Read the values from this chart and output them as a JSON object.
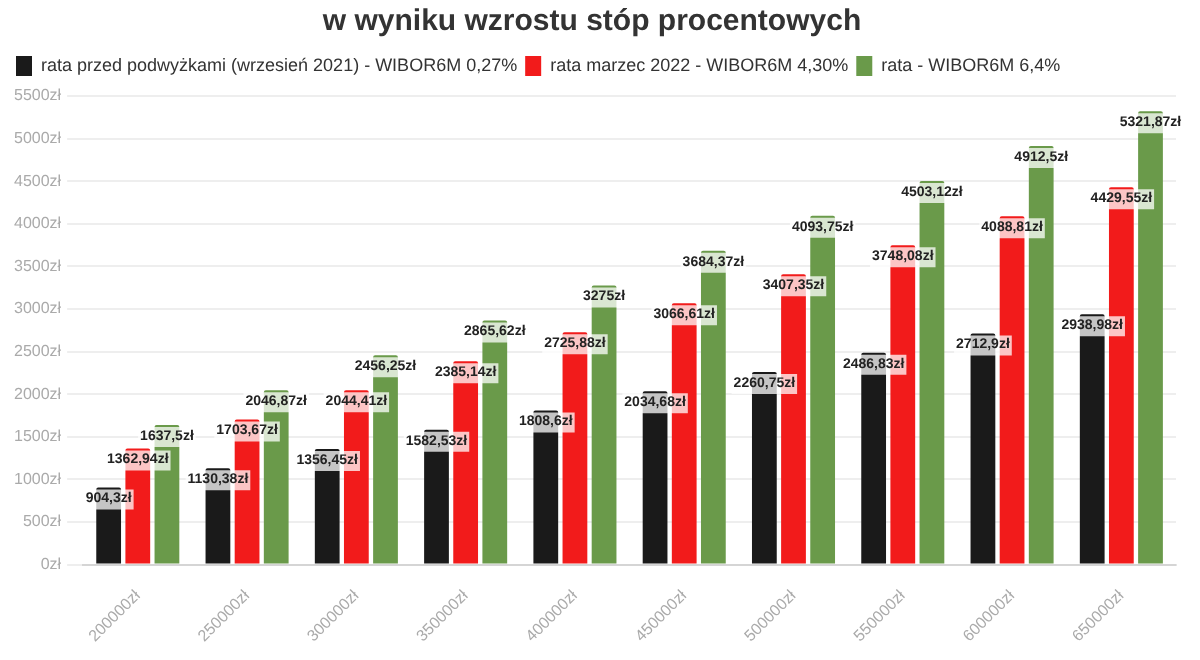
{
  "chart_data": {
    "type": "bar",
    "title": "w wyniku wzrostu stóp procentowych",
    "categories": [
      "200000zł",
      "250000zł",
      "300000zł",
      "350000zł",
      "400000zł",
      "450000zł",
      "500000zł",
      "550000zł",
      "600000zł",
      "650000zł"
    ],
    "series": [
      {
        "name": "rata przed podwyżkami (wrzesień 2021) - WIBOR6M 0,27%",
        "color": "#1a1a1a",
        "values": [
          904.3,
          1130.38,
          1356.45,
          1582.53,
          1808.6,
          2034.68,
          2260.75,
          2486.83,
          2712.9,
          2938.98
        ],
        "value_labels": [
          "904,3zł",
          "1130,38zł",
          "1356,45zł",
          "1582,53zł",
          "1808,6zł",
          "2034,68zł",
          "2260,75zł",
          "2486,83zł",
          "2712,9zł",
          "2938,98zł"
        ]
      },
      {
        "name": "rata marzec 2022 - WIBOR6M 4,30%",
        "color": "#f21b1b",
        "values": [
          1362.94,
          1703.67,
          2044.41,
          2385.14,
          2725.88,
          3066.61,
          3407.35,
          3748.08,
          4088.81,
          4429.55
        ],
        "value_labels": [
          "1362,94zł",
          "1703,67zł",
          "2044,41zł",
          "2385,14zł",
          "2725,88zł",
          "3066,61zł",
          "3407,35zł",
          "3748,08zł",
          "4088,81zł",
          "4429,55zł"
        ]
      },
      {
        "name": "rata - WIBOR6M 6,4%",
        "color": "#6a9a4a",
        "values": [
          1637.5,
          2046.87,
          2456.25,
          2865.62,
          3275,
          3684.37,
          4093.75,
          4503.12,
          4912.5,
          5321.87
        ],
        "value_labels": [
          "1637,5zł",
          "2046,87zł",
          "2456,25zł",
          "2865,62zł",
          "3275zł",
          "3684,37zł",
          "4093,75zł",
          "4503,12zł",
          "4912,5zł",
          "5321,87zł"
        ]
      }
    ],
    "ylim": [
      0,
      5500
    ],
    "yticks": [
      {
        "value": 0,
        "label": "0zł"
      },
      {
        "value": 500,
        "label": "500zł"
      },
      {
        "value": 1000,
        "label": "1000zł"
      },
      {
        "value": 1500,
        "label": "1500zł"
      },
      {
        "value": 2000,
        "label": "2000zł"
      },
      {
        "value": 2500,
        "label": "2500zł"
      },
      {
        "value": 3000,
        "label": "3000zł"
      },
      {
        "value": 3500,
        "label": "3500zł"
      },
      {
        "value": 4000,
        "label": "4000zł"
      },
      {
        "value": 4500,
        "label": "4500zł"
      },
      {
        "value": 5000,
        "label": "5000zł"
      },
      {
        "value": 5500,
        "label": "5500zł"
      }
    ],
    "grid": "y",
    "legend": "top left"
  }
}
